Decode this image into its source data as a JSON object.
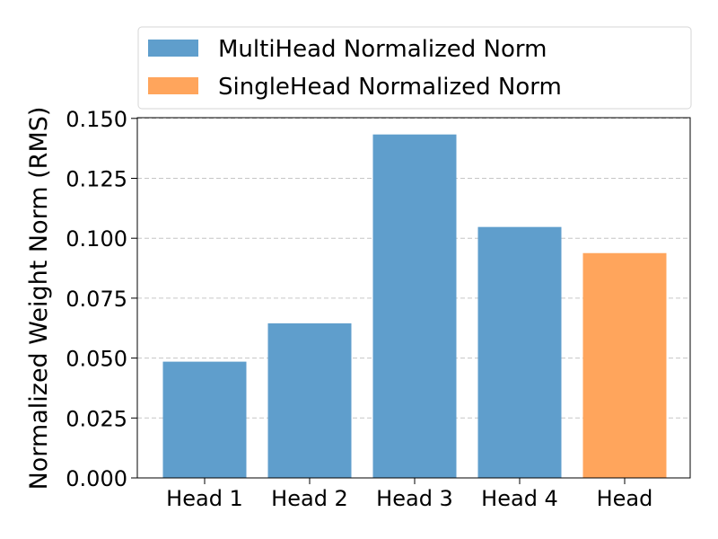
{
  "chart_data": {
    "type": "bar",
    "categories": [
      "Head 1",
      "Head 2",
      "Head 3",
      "Head 4",
      "Head"
    ],
    "series": [
      {
        "name": "MultiHead Normalized Norm",
        "color": "#5f9ecc",
        "values": [
          0.0485,
          0.0645,
          0.1433,
          0.1047,
          null
        ]
      },
      {
        "name": "SingleHead Normalized Norm",
        "color": "#ffa55c",
        "values": [
          null,
          null,
          null,
          null,
          0.0938
        ]
      }
    ],
    "title": "",
    "xlabel": "",
    "ylabel": "Normalized Weight Norm (RMS)",
    "ylim": [
      0,
      0.15
    ],
    "yticks": [
      "0.000",
      "0.025",
      "0.050",
      "0.075",
      "0.100",
      "0.125",
      "0.150"
    ],
    "grid": "y-dashed",
    "legend": "top-outside"
  }
}
